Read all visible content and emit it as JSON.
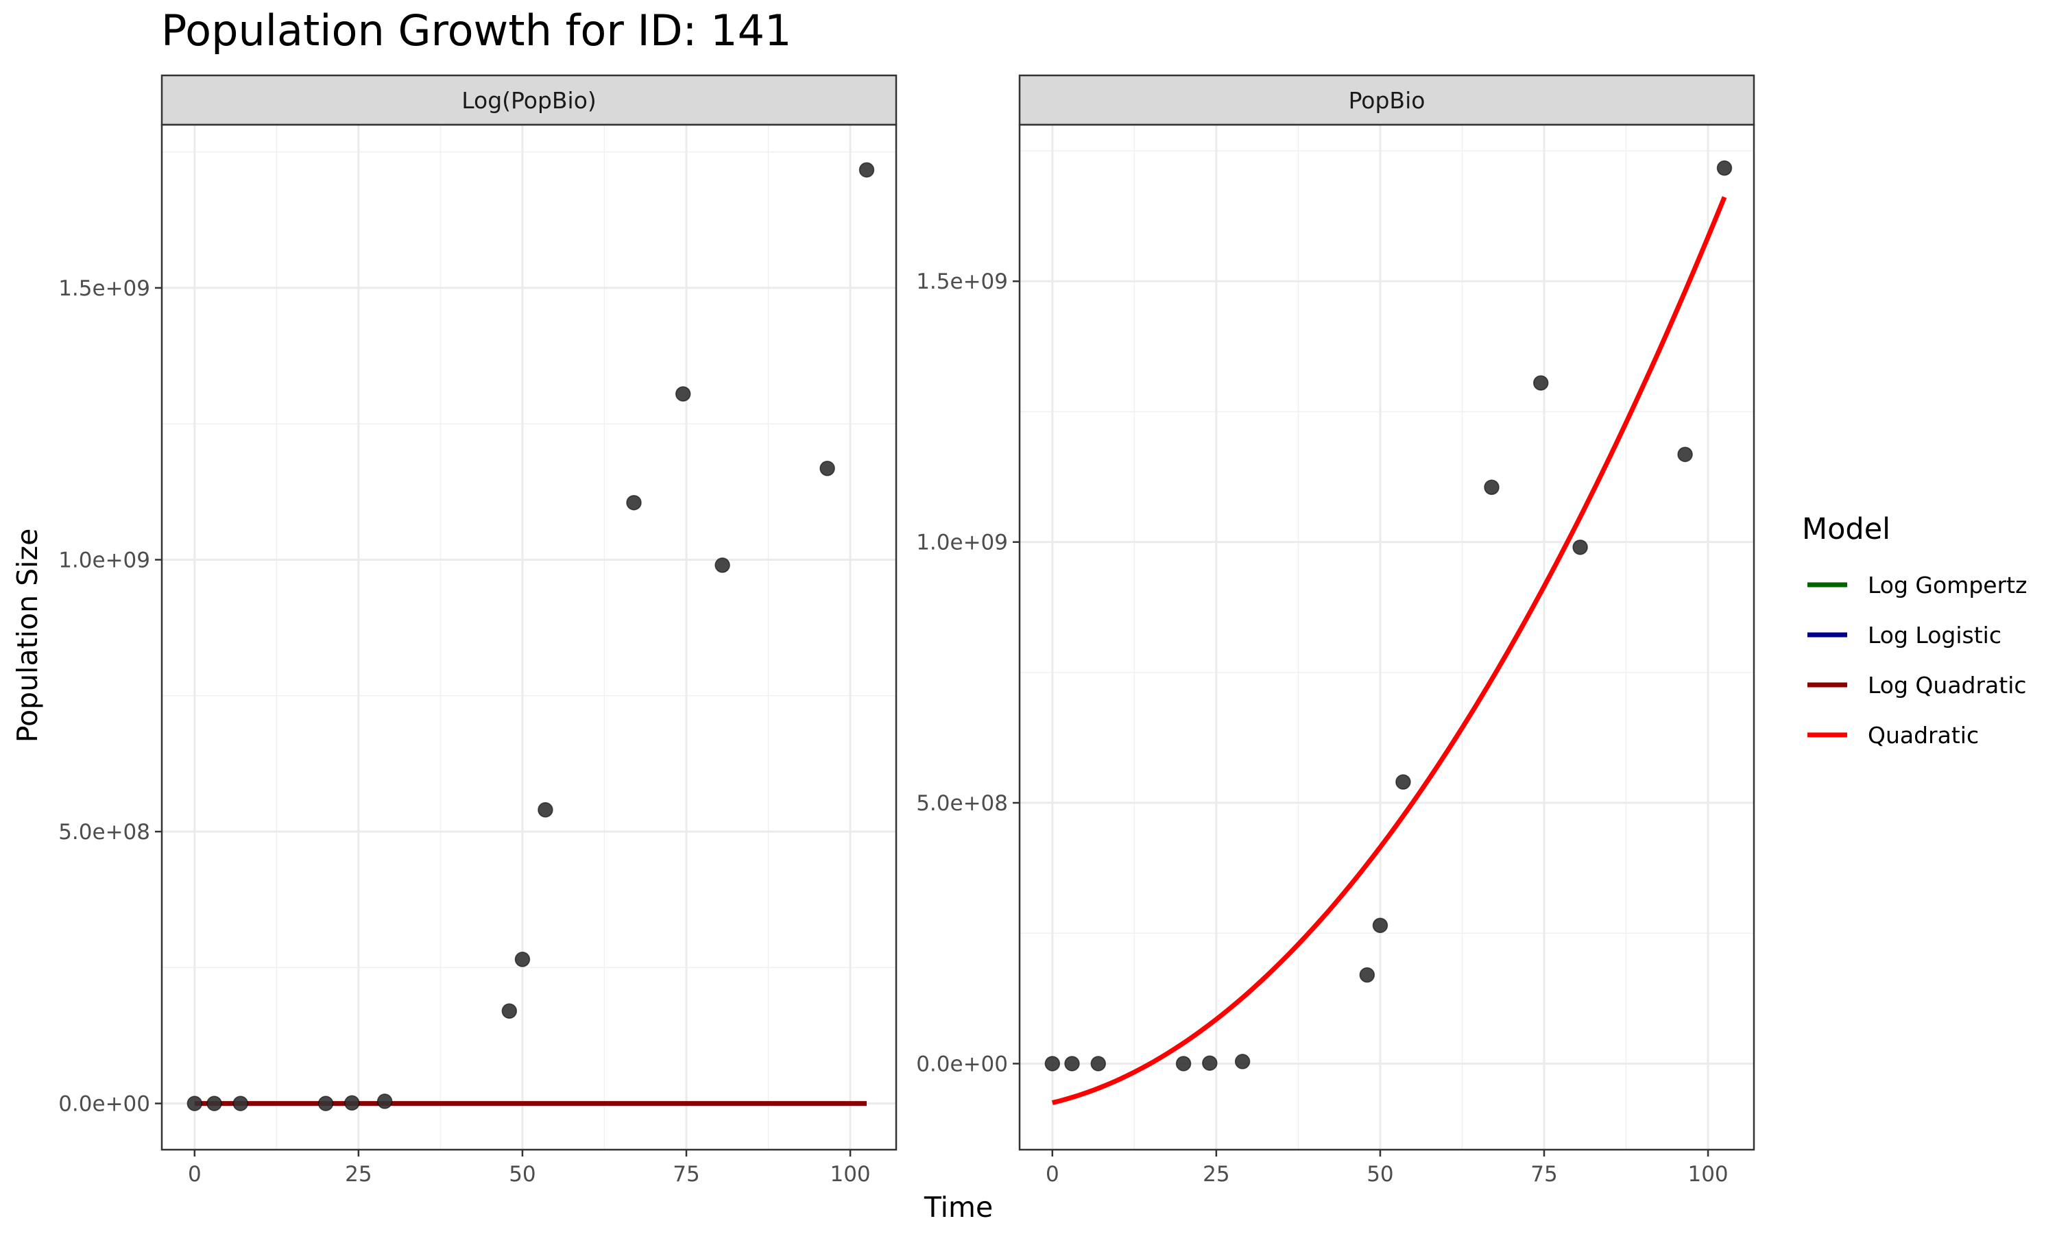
{
  "chart_data": {
    "type": "scatter",
    "title": "Population Growth for ID: 141",
    "xlabel": "Time",
    "ylabel": "Population Size",
    "legend": {
      "title": "Model",
      "position": "right",
      "entries": [
        {
          "name": "Log Gompertz",
          "color": "#006400"
        },
        {
          "name": "Log Logistic",
          "color": "#00008B"
        },
        {
          "name": "Log Quadratic",
          "color": "#8B0000"
        },
        {
          "name": "Quadratic",
          "color": "#FF0000"
        }
      ]
    },
    "grid": true,
    "x_ticks": [
      0,
      25,
      50,
      75,
      100
    ],
    "x_tick_labels": [
      "0",
      "25",
      "50",
      "75",
      "100"
    ],
    "xlim": [
      -5,
      107
    ],
    "facets": [
      {
        "strip": "Log(PopBio)",
        "ylim": [
          -85000000,
          1800000000
        ],
        "y_ticks": [
          0,
          500000000,
          1000000000,
          1500000000
        ],
        "y_tick_labels": [
          "0.0e+00",
          "5.0e+08",
          "1.0e+09",
          "1.5e+09"
        ],
        "points": [
          {
            "x": 0,
            "y": 0
          },
          {
            "x": 3,
            "y": 0
          },
          {
            "x": 7,
            "y": 0
          },
          {
            "x": 20,
            "y": 0
          },
          {
            "x": 24,
            "y": 1000000
          },
          {
            "x": 29,
            "y": 4000000
          },
          {
            "x": 48,
            "y": 170000000
          },
          {
            "x": 50,
            "y": 265000000
          },
          {
            "x": 53.5,
            "y": 540000000
          },
          {
            "x": 67,
            "y": 1105000000
          },
          {
            "x": 74.5,
            "y": 1305000000
          },
          {
            "x": 80.5,
            "y": 990000000
          },
          {
            "x": 96.5,
            "y": 1168000000
          },
          {
            "x": 102.5,
            "y": 1717000000
          }
        ],
        "series": [
          {
            "name": "Log Quadratic",
            "x": [
              0,
              102.5
            ],
            "y": [
              0,
              0
            ]
          }
        ]
      },
      {
        "strip": "PopBio",
        "ylim": [
          -165000000,
          1800000000
        ],
        "y_ticks": [
          0,
          500000000,
          1000000000,
          1500000000
        ],
        "y_tick_labels": [
          "0.0e+00",
          "5.0e+08",
          "1.0e+09",
          "1.5e+09"
        ],
        "points": [
          {
            "x": 0,
            "y": 0
          },
          {
            "x": 3,
            "y": 0
          },
          {
            "x": 7,
            "y": 0
          },
          {
            "x": 20,
            "y": 0
          },
          {
            "x": 24,
            "y": 1000000
          },
          {
            "x": 29,
            "y": 4000000
          },
          {
            "x": 48,
            "y": 170000000
          },
          {
            "x": 50,
            "y": 265000000
          },
          {
            "x": 53.5,
            "y": 540000000
          },
          {
            "x": 67,
            "y": 1105000000
          },
          {
            "x": 74.5,
            "y": 1305000000
          },
          {
            "x": 80.5,
            "y": 990000000
          },
          {
            "x": 96.5,
            "y": 1168000000
          },
          {
            "x": 102.5,
            "y": 1717000000
          }
        ],
        "series": [
          {
            "name": "Quadratic",
            "quadratic_coefficients": [
              -75000000,
              3000000,
              136000
            ]
          }
        ]
      }
    ]
  }
}
